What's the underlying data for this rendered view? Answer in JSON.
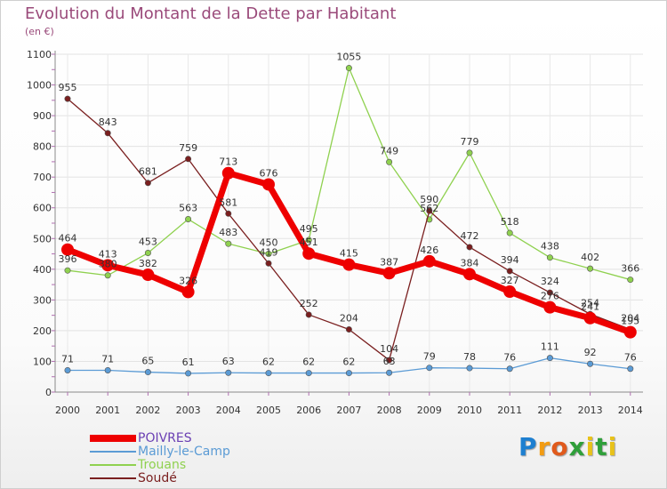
{
  "title": "Evolution du Montant de la Dette par Habitant",
  "subtitle": "(en €)",
  "logo": {
    "letters": [
      {
        "ch": "P",
        "color": "#1e7fd0"
      },
      {
        "ch": "r",
        "color": "#f39c12"
      },
      {
        "ch": "o",
        "color": "#e05a1c"
      },
      {
        "ch": "x",
        "color": "#2f9f3a"
      },
      {
        "ch": "i",
        "color": "#e8c21a"
      },
      {
        "ch": "t",
        "color": "#2f9f3a"
      },
      {
        "ch": "i",
        "color": "#e8c21a"
      }
    ]
  },
  "chart_data": {
    "type": "line",
    "title": "Evolution du Montant de la Dette par Habitant",
    "subtitle": "(en €)",
    "xlabel": "",
    "ylabel": "",
    "ylim": [
      0,
      1100
    ],
    "yticks": [
      0,
      100,
      200,
      300,
      400,
      500,
      600,
      700,
      800,
      900,
      1000,
      1100
    ],
    "x": [
      "2000",
      "2001",
      "2002",
      "2003",
      "2004",
      "2005",
      "2006",
      "2007",
      "2008",
      "2009",
      "2010",
      "2011",
      "2012",
      "2013",
      "2014"
    ],
    "legend_position": "bottom-left",
    "series": [
      {
        "name": "POIVRES",
        "color": "#ee0000",
        "thick": true,
        "values": [
          464,
          413,
          382,
          326,
          713,
          676,
          451,
          415,
          387,
          426,
          384,
          327,
          276,
          241,
          195
        ]
      },
      {
        "name": "Mailly-le-Camp",
        "color": "#5b9bd5",
        "thick": false,
        "values": [
          71,
          71,
          65,
          61,
          63,
          62,
          62,
          62,
          63,
          79,
          78,
          76,
          111,
          92,
          76
        ]
      },
      {
        "name": "Trouans",
        "color": "#8fd14f",
        "thick": false,
        "values": [
          396,
          380,
          453,
          563,
          483,
          450,
          495,
          1055,
          749,
          562,
          779,
          518,
          438,
          402,
          366
        ]
      },
      {
        "name": "Soudé",
        "color": "#7a1f1f",
        "thick": false,
        "values": [
          955,
          843,
          681,
          759,
          581,
          419,
          252,
          204,
          104,
          590,
          472,
          394,
          324,
          254,
          204
        ]
      }
    ]
  }
}
